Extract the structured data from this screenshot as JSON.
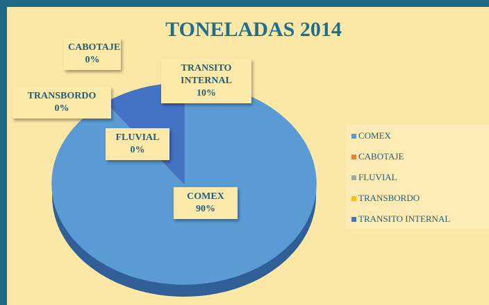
{
  "chart_data": {
    "type": "pie",
    "title": "TONELADAS 2014",
    "categories": [
      "COMEX",
      "CABOTAJE",
      "FLUVIAL",
      "TRANSBORDO",
      "TRANSITO INTERNAL"
    ],
    "values": [
      90,
      0,
      0,
      0,
      10
    ],
    "value_labels": [
      "90%",
      "0%",
      "0%",
      "0%",
      "10%"
    ],
    "colors": [
      "#5b9bd5",
      "#ed7d31",
      "#a5a5a5",
      "#ffc000",
      "#4472c4"
    ],
    "legend": "right"
  }
}
